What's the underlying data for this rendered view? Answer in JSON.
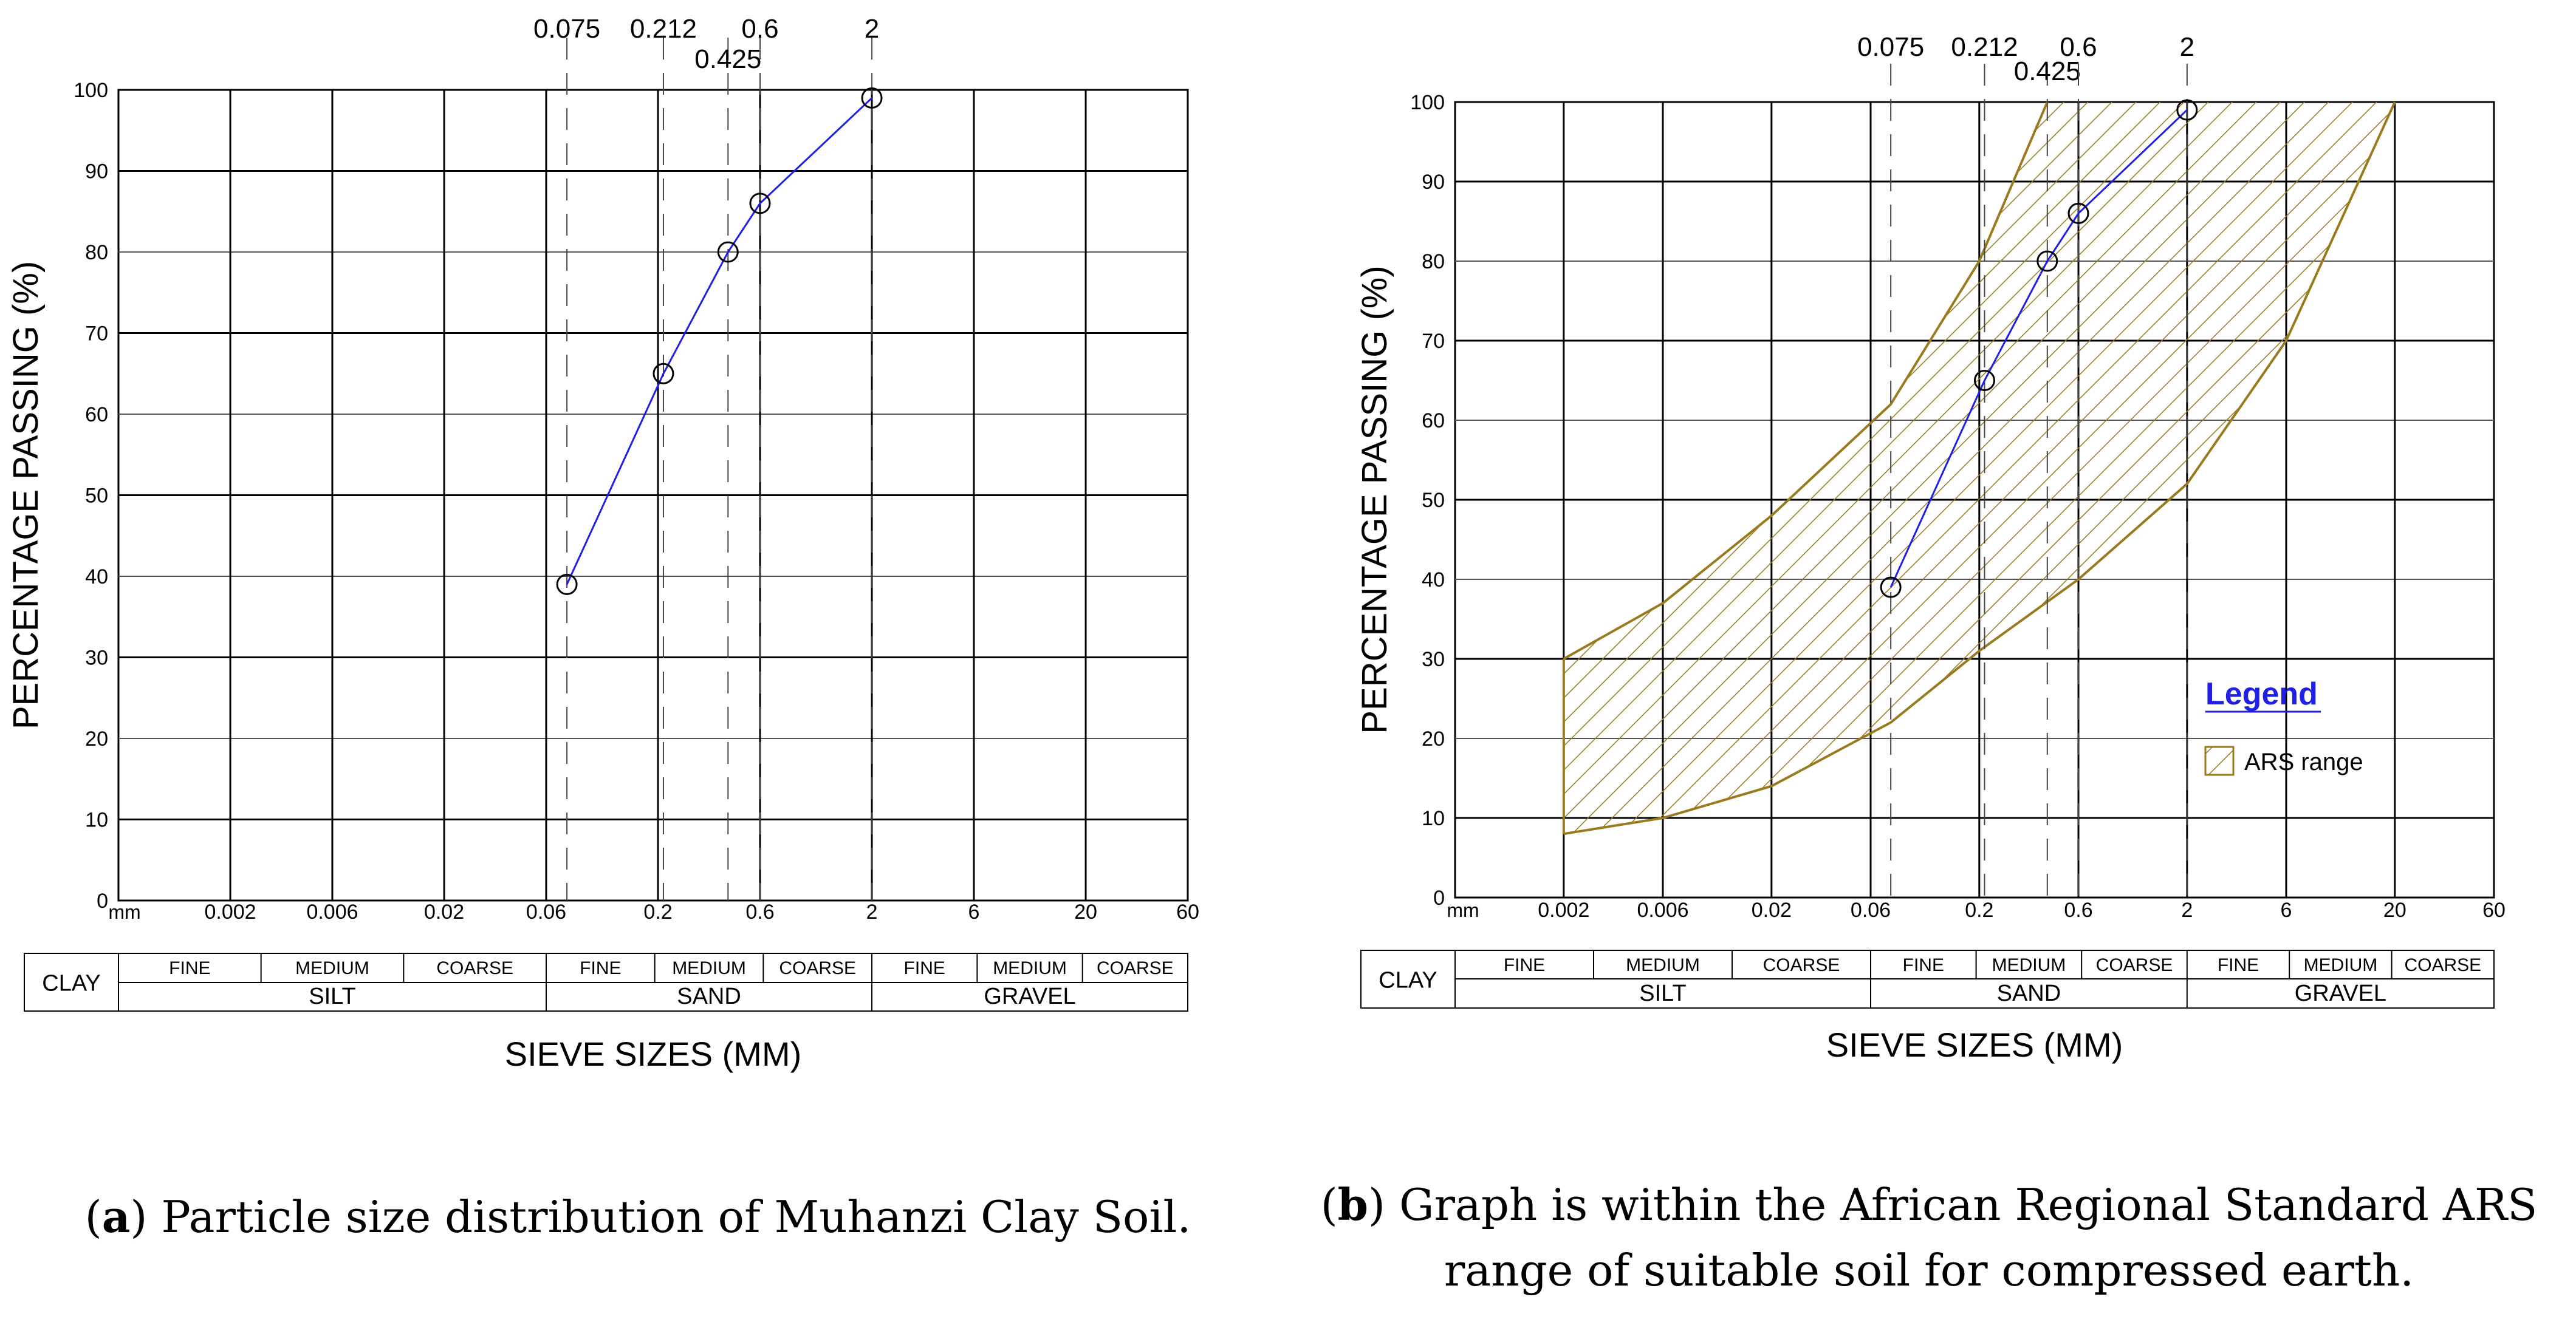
{
  "colors": {
    "curve": "#1f1fe6",
    "ars_band": "#9a7a1e",
    "grid_major": "#000000",
    "grid_minor": "#777777",
    "legend_title": "#1f1fe6"
  },
  "chart_data": [
    {
      "id": "a",
      "type": "line",
      "x_scale": "log",
      "ylabel": "PERCENTAGE PASSING (%)",
      "xlabel": "SIEVE SIZES (MM)",
      "x_unit_label": "mm",
      "ylim": [
        0,
        100
      ],
      "y_ticks": [
        "0",
        "10",
        "20",
        "30",
        "40",
        "50",
        "60",
        "70",
        "80",
        "90",
        "100"
      ],
      "x_ticks": [
        "0.002",
        "0.006",
        "0.02",
        "0.06",
        "0.2",
        "0.6",
        "2",
        "6",
        "20",
        "60"
      ],
      "sieve_labels": [
        "0.075",
        "0.212",
        "0.425",
        "0.6",
        "2"
      ],
      "series": [
        {
          "name": "Muhanzi Clay Soil",
          "x": [
            0.075,
            0.212,
            0.425,
            0.6,
            2
          ],
          "values": [
            39,
            65,
            80,
            86,
            99
          ]
        }
      ],
      "classification": {
        "clay": "CLAY",
        "sub": [
          "FINE",
          "MEDIUM",
          "COARSE",
          "FINE",
          "MEDIUM",
          "COARSE",
          "FINE",
          "MEDIUM",
          "COARSE"
        ],
        "groups": [
          "SILT",
          "SAND",
          "GRAVEL"
        ]
      }
    },
    {
      "id": "b",
      "type": "line",
      "x_scale": "log",
      "ylabel": "PERCENTAGE PASSING (%)",
      "xlabel": "SIEVE SIZES (MM)",
      "x_unit_label": "mm",
      "ylim": [
        0,
        100
      ],
      "y_ticks": [
        "0",
        "10",
        "20",
        "30",
        "40",
        "50",
        "60",
        "70",
        "80",
        "90",
        "100"
      ],
      "x_ticks": [
        "0.002",
        "0.006",
        "0.02",
        "0.06",
        "0.2",
        "0.6",
        "2",
        "6",
        "20",
        "60"
      ],
      "sieve_labels": [
        "0.075",
        "0.212",
        "0.425",
        "0.6",
        "2"
      ],
      "series": [
        {
          "name": "Muhanzi Clay Soil",
          "x": [
            0.075,
            0.212,
            0.425,
            0.6,
            2
          ],
          "values": [
            39,
            65,
            80,
            86,
            99
          ]
        }
      ],
      "ars_range": {
        "upper": {
          "x": [
            0.002,
            0.006,
            0.02,
            0.075,
            0.2,
            0.425
          ],
          "y": [
            30,
            37,
            48,
            62,
            80,
            100
          ]
        },
        "lower": {
          "x": [
            0.002,
            0.006,
            0.02,
            0.075,
            0.2,
            0.6,
            2,
            6,
            20
          ],
          "y": [
            8,
            10,
            14,
            22,
            31,
            40,
            52,
            70,
            100
          ]
        }
      },
      "legend": {
        "title": "Legend",
        "entries": [
          "ARS range"
        ],
        "position": "right"
      },
      "classification": {
        "clay": "CLAY",
        "sub": [
          "FINE",
          "MEDIUM",
          "COARSE",
          "FINE",
          "MEDIUM",
          "COARSE",
          "FINE",
          "MEDIUM",
          "COARSE"
        ],
        "groups": [
          "SILT",
          "SAND",
          "GRAVEL"
        ]
      }
    }
  ],
  "captions": [
    {
      "label": "a",
      "text": " Particle size distribution of Muhanzi Clay Soil."
    },
    {
      "label": "b",
      "text_line1": " Graph is within the African Regional Standard ARS",
      "text_line2": "range of suitable soil for compressed earth."
    }
  ]
}
